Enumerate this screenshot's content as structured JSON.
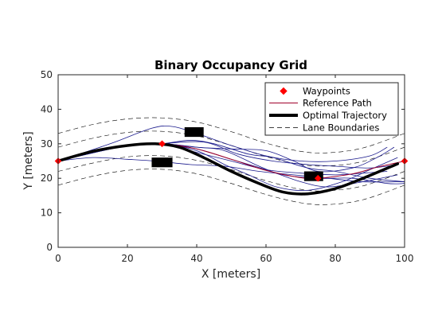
{
  "chart_data": {
    "type": "line",
    "title": "Binary Occupancy Grid",
    "xlabel": "X [meters]",
    "ylabel": "Y [meters]",
    "xlim": [
      0,
      100
    ],
    "ylim": [
      0,
      50
    ],
    "xticks": [
      0,
      20,
      40,
      60,
      80,
      100
    ],
    "yticks": [
      0,
      10,
      20,
      30,
      40,
      50
    ],
    "grid": false,
    "legend_position": "top-right",
    "legend": [
      "Waypoints",
      "Reference Path",
      "Optimal Trajectory",
      "Lane Boundaries"
    ],
    "colors": {
      "waypoints": "#ff0000",
      "reference_path": "#a0002a",
      "optimal_trajectory": "#000000",
      "lane_boundaries": "#000000",
      "candidate_trajectories": "#1a1a8c",
      "obstacles": "#000000"
    },
    "series": [
      {
        "name": "Waypoints",
        "style": "markers",
        "points": [
          [
            0,
            25
          ],
          [
            30,
            30
          ],
          [
            75,
            20
          ],
          [
            100,
            25
          ]
        ]
      },
      {
        "name": "Reference Path",
        "style": "thin-line",
        "points": [
          [
            0,
            25
          ],
          [
            10,
            27.8
          ],
          [
            20,
            29.7
          ],
          [
            30,
            30
          ],
          [
            40,
            28.5
          ],
          [
            50,
            25.5
          ],
          [
            60,
            22.3
          ],
          [
            70,
            20.2
          ],
          [
            75,
            20
          ],
          [
            85,
            21.3
          ],
          [
            92,
            23.2
          ],
          [
            100,
            25
          ]
        ]
      },
      {
        "name": "Optimal Trajectory",
        "style": "thick-line",
        "points": [
          [
            0,
            25
          ],
          [
            10,
            27.8
          ],
          [
            20,
            29.5
          ],
          [
            28,
            30
          ],
          [
            35,
            29
          ],
          [
            42,
            26
          ],
          [
            50,
            22
          ],
          [
            58,
            18.5
          ],
          [
            65,
            16
          ],
          [
            72,
            15.5
          ],
          [
            80,
            17
          ],
          [
            88,
            20
          ],
          [
            98,
            24.2
          ]
        ]
      },
      {
        "name": "Lane Boundaries",
        "style": "dashed",
        "lines": [
          [
            [
              0,
              33
            ],
            [
              10,
              35.6
            ],
            [
              20,
              37.2
            ],
            [
              30,
              37.5
            ],
            [
              40,
              36.3
            ],
            [
              50,
              33.5
            ],
            [
              60,
              30.2
            ],
            [
              70,
              27.8
            ],
            [
              78,
              27.4
            ],
            [
              88,
              28.8
            ],
            [
              100,
              33
            ]
          ],
          [
            [
              0,
              29
            ],
            [
              10,
              31.6
            ],
            [
              20,
              33.3
            ],
            [
              30,
              33.6
            ],
            [
              40,
              32.3
            ],
            [
              50,
              29.5
            ],
            [
              60,
              26.3
            ],
            [
              70,
              24
            ],
            [
              78,
              23.6
            ],
            [
              88,
              24.9
            ],
            [
              100,
              29
            ]
          ],
          [
            [
              0,
              22
            ],
            [
              10,
              24.4
            ],
            [
              20,
              26.2
            ],
            [
              30,
              26.5
            ],
            [
              40,
              25.2
            ],
            [
              50,
              22.5
            ],
            [
              60,
              19.3
            ],
            [
              70,
              16.8
            ],
            [
              78,
              16.4
            ],
            [
              88,
              17.8
            ],
            [
              100,
              22
            ]
          ],
          [
            [
              0,
              18
            ],
            [
              10,
              20.6
            ],
            [
              20,
              22.3
            ],
            [
              30,
              22.6
            ],
            [
              40,
              21.3
            ],
            [
              50,
              18.5
            ],
            [
              60,
              15.3
            ],
            [
              70,
              12.9
            ],
            [
              78,
              12.4
            ],
            [
              88,
              13.8
            ],
            [
              100,
              18
            ]
          ]
        ]
      },
      {
        "name": "",
        "style": "candidate-lines",
        "lines": [
          [
            [
              0,
              25
            ],
            [
              15,
              30
            ],
            [
              27,
              34.5
            ],
            [
              33,
              35
            ],
            [
              40,
              33
            ],
            [
              50,
              29.5
            ],
            [
              60,
              26.5
            ],
            [
              70,
              25
            ],
            [
              80,
              25
            ],
            [
              90,
              26.5
            ],
            [
              95,
              29
            ]
          ],
          [
            [
              0,
              25
            ],
            [
              20,
              29.5
            ],
            [
              30,
              30
            ],
            [
              40,
              29
            ],
            [
              50,
              28.5
            ],
            [
              60,
              28
            ],
            [
              68,
              25
            ],
            [
              75,
              22
            ],
            [
              85,
              23
            ],
            [
              92,
              26
            ],
            [
              97,
              29
            ]
          ],
          [
            [
              0,
              25
            ],
            [
              20,
              29.5
            ],
            [
              30,
              30
            ],
            [
              38,
              31
            ],
            [
              45,
              30
            ],
            [
              55,
              27
            ],
            [
              62,
              26
            ],
            [
              72,
              23
            ],
            [
              80,
              22
            ],
            [
              90,
              20
            ],
            [
              100,
              19
            ]
          ],
          [
            [
              0,
              25
            ],
            [
              20,
              29.5
            ],
            [
              30,
              30
            ],
            [
              40,
              29
            ],
            [
              48,
              28
            ],
            [
              58,
              23.5
            ],
            [
              65,
              21
            ],
            [
              75,
              20
            ],
            [
              85,
              20
            ],
            [
              95,
              18.5
            ],
            [
              100,
              18.5
            ]
          ],
          [
            [
              0,
              25
            ],
            [
              10,
              26
            ],
            [
              20,
              25.5
            ],
            [
              28,
              25
            ],
            [
              38,
              24
            ],
            [
              48,
              23.5
            ],
            [
              58,
              22
            ],
            [
              68,
              21
            ],
            [
              78,
              20
            ],
            [
              88,
              19
            ],
            [
              100,
              19
            ]
          ],
          [
            [
              0,
              25
            ],
            [
              20,
              29.5
            ],
            [
              30,
              30
            ],
            [
              40,
              28
            ],
            [
              48,
              24
            ],
            [
              55,
              21
            ],
            [
              63,
              17.5
            ],
            [
              72,
              16.5
            ],
            [
              82,
              19
            ],
            [
              90,
              22.5
            ],
            [
              98,
              26
            ]
          ],
          [
            [
              30,
              30
            ],
            [
              40,
              27.5
            ],
            [
              50,
              25
            ],
            [
              60,
              22.5
            ],
            [
              70,
              21.5
            ],
            [
              80,
              21
            ],
            [
              88,
              21.5
            ],
            [
              95,
              22
            ]
          ],
          [
            [
              30,
              30
            ],
            [
              42,
              30.5
            ],
            [
              52,
              27
            ],
            [
              62,
              25
            ],
            [
              72,
              24
            ],
            [
              80,
              23.5
            ],
            [
              90,
              23
            ],
            [
              98,
              24
            ]
          ],
          [
            [
              30,
              30
            ],
            [
              40,
              28.5
            ],
            [
              50,
              25.5
            ],
            [
              60,
              22.5
            ],
            [
              70,
              19
            ],
            [
              78,
              17.5
            ],
            [
              88,
              19
            ],
            [
              98,
              21
            ]
          ]
        ]
      },
      {
        "name": "",
        "style": "obstacles",
        "boxes": [
          {
            "x": [
              27,
              33
            ],
            "y": [
              23.2,
              26
            ]
          },
          {
            "x": [
              36.5,
              42
            ],
            "y": [
              32,
              34.8
            ]
          },
          {
            "x": [
              71,
              76.5
            ],
            "y": [
              19.2,
              22
            ]
          }
        ]
      }
    ]
  }
}
